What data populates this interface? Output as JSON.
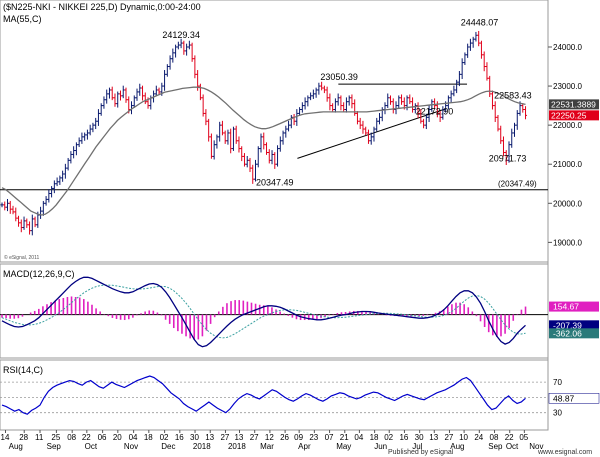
{
  "chart_data": {
    "type": "line",
    "title": "($N225-NKI - NIKKEI 225,D) Dynamic,0:00-24:00",
    "ma_label": "MA(55,C)",
    "watermark": "© eSignal, 2011",
    "footer_left": "Published by eSignal",
    "footer_right": "www.esignal.com",
    "x_tick_labels": [
      {
        "label": "14",
        "pos": 0.06
      },
      {
        "label": "28",
        "pos": 0.38
      },
      {
        "label": "11",
        "pos": 0.65
      },
      {
        "label": "25",
        "pos": 0.93
      },
      {
        "label": "08",
        "pos": 1.2
      },
      {
        "label": "22",
        "pos": 1.45
      },
      {
        "label": "06",
        "pos": 1.72
      },
      {
        "label": "20",
        "pos": 1.98
      },
      {
        "label": "04",
        "pos": 2.25
      },
      {
        "label": "18",
        "pos": 2.51
      },
      {
        "label": "02",
        "pos": 2.78
      },
      {
        "label": "16",
        "pos": 3.04
      },
      {
        "label": "30",
        "pos": 3.3
      },
      {
        "label": "13",
        "pos": 3.56
      },
      {
        "label": "27",
        "pos": 3.82
      },
      {
        "label": "13",
        "pos": 4.06
      },
      {
        "label": "27",
        "pos": 4.32
      },
      {
        "label": "12",
        "pos": 4.58
      },
      {
        "label": "26",
        "pos": 4.84
      },
      {
        "label": "09",
        "pos": 5.08
      },
      {
        "label": "23",
        "pos": 5.34
      },
      {
        "label": "07",
        "pos": 5.6
      },
      {
        "label": "21",
        "pos": 5.86
      },
      {
        "label": "04",
        "pos": 6.11
      },
      {
        "label": "18",
        "pos": 6.37
      },
      {
        "label": "02",
        "pos": 6.62
      },
      {
        "label": "16",
        "pos": 6.88
      },
      {
        "label": "30",
        "pos": 7.14
      },
      {
        "label": "13",
        "pos": 7.39
      },
      {
        "label": "27",
        "pos": 7.65
      },
      {
        "label": "10",
        "pos": 7.9
      },
      {
        "label": "24",
        "pos": 8.16
      },
      {
        "label": "08",
        "pos": 8.42
      },
      {
        "label": "22",
        "pos": 8.68
      },
      {
        "label": "05",
        "pos": 8.93
      }
    ],
    "month_labels": [
      {
        "label": "Aug",
        "pos": 0.25
      },
      {
        "label": "Sep",
        "pos": 0.9
      },
      {
        "label": "Oct",
        "pos": 1.55
      },
      {
        "label": "Nov",
        "pos": 2.22
      },
      {
        "label": "Dec",
        "pos": 2.86
      },
      {
        "label": "2018",
        "pos": 3.4
      },
      {
        "label": "2018",
        "pos": 4.0
      },
      {
        "label": "Mar",
        "pos": 4.55
      },
      {
        "label": "Apr",
        "pos": 5.2
      },
      {
        "label": "May",
        "pos": 5.85
      },
      {
        "label": "Jun",
        "pos": 6.5
      },
      {
        "label": "Jul",
        "pos": 7.15
      },
      {
        "label": "Aug",
        "pos": 7.8
      },
      {
        "label": "Sep",
        "pos": 8.45
      },
      {
        "label": "Oct",
        "pos": 8.75
      },
      {
        "label": "Nov",
        "pos": 9.15
      }
    ],
    "price_pane": {
      "ylim": [
        18600,
        25100
      ],
      "ticks": [
        "19000.0",
        "20000.0",
        "21000.0",
        "22000.0",
        "23000.0",
        "24000.0"
      ],
      "tick_values": [
        19000,
        20000,
        21000,
        22000,
        23000,
        24000
      ],
      "last_values": [
        {
          "label": "22531.3889",
          "value": 22531.3889,
          "color": "#ffffff",
          "bg": "#404040"
        },
        {
          "label": "22250.25",
          "value": 22250.25,
          "color": "#ffffff",
          "bg": "#e0001a"
        }
      ],
      "support_level": {
        "label": "(20347.49)",
        "value": 20347.49
      },
      "annotations": [
        {
          "text": "24129.34",
          "x": 3.05,
          "y": 24129.34
        },
        {
          "text": "23050.39",
          "x": 5.75,
          "y": 23050.39
        },
        {
          "text": "24448.07",
          "x": 8.15,
          "y": 24448.07
        },
        {
          "text": "22583.43",
          "x": 8.72,
          "y": 22583.43
        },
        {
          "text": "22172.90",
          "x": 7.38,
          "y": 22172.9
        },
        {
          "text": "20347.49",
          "x": 4.65,
          "y": 20347.49
        },
        {
          "text": "20971.73",
          "x": 8.63,
          "y": 20971.73
        }
      ],
      "closes": [
        19960,
        19900,
        20000,
        19850,
        19780,
        19620,
        19500,
        19380,
        19550,
        19450,
        19300,
        19600,
        19450,
        19700,
        19800,
        20000,
        20100,
        20250,
        20380,
        20500,
        20550,
        20650,
        20750,
        20900,
        21100,
        21250,
        21350,
        21500,
        21600,
        21700,
        21750,
        21800,
        21900,
        22000,
        22100,
        22300,
        22500,
        22650,
        22800,
        22900,
        22700,
        22550,
        22800,
        22750,
        22900,
        22650,
        22400,
        22500,
        22700,
        22850,
        22950,
        22750,
        22600,
        22500,
        22700,
        22800,
        22900,
        22850,
        23000,
        23300,
        23500,
        23700,
        23850,
        24000,
        24050,
        24100,
        23900,
        24000,
        24050,
        23700,
        23300,
        23000,
        22700,
        22300,
        22100,
        21700,
        21200,
        21500,
        21700,
        22000,
        21800,
        21600,
        21800,
        21400,
        21900,
        21600,
        21400,
        21200,
        21000,
        21100,
        20900,
        20617,
        21000,
        21400,
        21700,
        21500,
        21300,
        21100,
        21250,
        21000,
        21400,
        21600,
        21800,
        21900,
        22000,
        22200,
        22100,
        22300,
        22400,
        22500,
        22600,
        22700,
        22750,
        22800,
        22900,
        23000,
        22950,
        22900,
        22700,
        22500,
        22400,
        22600,
        22700,
        22500,
        22400,
        22600,
        22700,
        22550,
        22300,
        22100,
        22000,
        21900,
        21800,
        21600,
        21700,
        21900,
        22100,
        22200,
        22400,
        22500,
        22700,
        22600,
        22400,
        22500,
        22700,
        22600,
        22500,
        22700,
        22600,
        22400,
        22500,
        22300,
        22100,
        22000,
        22200,
        22400,
        22600,
        22500,
        22300,
        22200,
        22400,
        22500,
        22700,
        22800,
        22900,
        23100,
        23300,
        23600,
        23800,
        24000,
        24100,
        24200,
        24300,
        24100,
        23800,
        23500,
        23200,
        22800,
        22500,
        22200,
        21900,
        21600,
        21300,
        21100,
        21500,
        21800,
        22000,
        22300,
        22500,
        22400,
        22250
      ],
      "ma_values": [
        20400,
        20350,
        20280,
        20200,
        20120,
        20040,
        19960,
        19880,
        19800,
        19760,
        19720,
        19700,
        19720,
        19780,
        19860,
        19960,
        20080,
        20200,
        20320,
        20460,
        20600,
        20740,
        20880,
        21020,
        21160,
        21300,
        21440,
        21560,
        21680,
        21800,
        21920,
        22020,
        22120,
        22200,
        22280,
        22350,
        22420,
        22480,
        22540,
        22600,
        22640,
        22680,
        22720,
        22760,
        22800,
        22840,
        22860,
        22880,
        22900,
        22920,
        22940,
        22950,
        22960,
        22970,
        22970,
        22960,
        22940,
        22900,
        22850,
        22790,
        22720,
        22640,
        22560,
        22470,
        22380,
        22300,
        22220,
        22140,
        22070,
        22010,
        21960,
        21930,
        21910,
        21910,
        21930,
        21960,
        22000,
        22040,
        22080,
        22120,
        22160,
        22200,
        22240,
        22270,
        22290,
        22300,
        22310,
        22320,
        22330,
        22340,
        22340,
        22340,
        22340,
        22340,
        22340,
        22340,
        22340,
        22340,
        22340,
        22340,
        22340,
        22340,
        22350,
        22360,
        22370,
        22380,
        22390,
        22400,
        22410,
        22420,
        22430,
        22440,
        22450,
        22460,
        22470,
        22480,
        22490,
        22500,
        22510,
        22520,
        22530,
        22540,
        22550,
        22560,
        22570,
        22580,
        22590,
        22600,
        22620,
        22650,
        22690,
        22740,
        22790,
        22830,
        22860,
        22870,
        22860,
        22830,
        22790,
        22740,
        22690,
        22640,
        22600,
        22570,
        22550,
        22531
      ]
    },
    "macd_pane": {
      "label": "MACD(12,26,9,C)",
      "ylim": [
        -800,
        900
      ],
      "last_values": [
        {
          "label": "154.67",
          "value": 154.67,
          "color": "#ffffff",
          "bg": "#e020c0"
        },
        {
          "label": "-207.39",
          "value": -207.39,
          "color": "#ffffff",
          "bg": "#000080"
        },
        {
          "label": "-362.06",
          "value": -362.06,
          "color": "#ffffff",
          "bg": "#2a7a7a"
        }
      ],
      "macd_line": [
        -120,
        -160,
        -200,
        -230,
        -240,
        -230,
        -200,
        -160,
        -120,
        -60,
        20,
        100,
        180,
        260,
        340,
        420,
        500,
        580,
        640,
        690,
        720,
        720,
        700,
        660,
        620,
        580,
        540,
        500,
        470,
        440,
        420,
        420,
        440,
        480,
        520,
        560,
        590,
        600,
        580,
        530,
        440,
        330,
        200,
        70,
        -60,
        -200,
        -340,
        -480,
        -580,
        -620,
        -600,
        -540,
        -460,
        -380,
        -300,
        -220,
        -150,
        -90,
        -40,
        0,
        30,
        60,
        90,
        120,
        150,
        170,
        170,
        160,
        140,
        110,
        70,
        30,
        -10,
        -40,
        -60,
        -80,
        -90,
        -100,
        -100,
        -90,
        -70,
        -50,
        -30,
        -10,
        0,
        20,
        40,
        50,
        60,
        60,
        55,
        45,
        30,
        20,
        10,
        0,
        -10,
        -20,
        -30,
        -40,
        -50,
        -60,
        -70,
        -70,
        -60,
        -40,
        -10,
        30,
        90,
        170,
        260,
        350,
        420,
        460,
        460,
        420,
        340,
        220,
        60,
        -120,
        -280,
        -420,
        -520,
        -570,
        -540,
        -460,
        -360,
        -280,
        -207
      ],
      "signal_line": [
        -60,
        -90,
        -120,
        -150,
        -170,
        -190,
        -200,
        -200,
        -190,
        -170,
        -140,
        -100,
        -60,
        -10,
        40,
        100,
        160,
        230,
        300,
        360,
        420,
        470,
        510,
        540,
        560,
        570,
        570,
        565,
        555,
        540,
        525,
        510,
        500,
        495,
        495,
        500,
        510,
        525,
        540,
        545,
        540,
        510,
        460,
        390,
        310,
        220,
        120,
        10,
        -100,
        -200,
        -290,
        -360,
        -410,
        -440,
        -450,
        -440,
        -410,
        -370,
        -320,
        -270,
        -220,
        -170,
        -120,
        -70,
        -30,
        0,
        30,
        60,
        80,
        90,
        95,
        90,
        80,
        65,
        45,
        25,
        5,
        -15,
        -30,
        -45,
        -55,
        -60,
        -60,
        -55,
        -50,
        -40,
        -30,
        -20,
        -10,
        0,
        10,
        18,
        22,
        24,
        24,
        22,
        18,
        12,
        5,
        -5,
        -15,
        -25,
        -35,
        -45,
        -50,
        -50,
        -45,
        -35,
        -15,
        15,
        60,
        120,
        190,
        260,
        320,
        360,
        370,
        350,
        300,
        220,
        120,
        10,
        -100,
        -200,
        -280,
        -340,
        -370,
        -375,
        -362
      ]
    },
    "rsi_pane": {
      "label": "RSI(14,C)",
      "ylim": [
        10,
        95
      ],
      "ticks": [
        "30",
        "50",
        "70"
      ],
      "tick_values": [
        30,
        50,
        70
      ],
      "last_values": [
        {
          "label": "48.87",
          "value": 48.87,
          "color": "#000000",
          "bg": "#ffffff"
        }
      ],
      "values": [
        40,
        38,
        35,
        32,
        34,
        30,
        28,
        33,
        36,
        40,
        50,
        58,
        63,
        66,
        68,
        70,
        72,
        71,
        68,
        66,
        70,
        72,
        68,
        64,
        62,
        66,
        70,
        67,
        65,
        63,
        66,
        69,
        72,
        74,
        76,
        78,
        76,
        72,
        68,
        62,
        56,
        52,
        48,
        42,
        38,
        35,
        32,
        36,
        40,
        44,
        40,
        36,
        33,
        30,
        35,
        42,
        48,
        52,
        55,
        53,
        50,
        48,
        52,
        56,
        60,
        58,
        54,
        50,
        47,
        45,
        48,
        52,
        55,
        53,
        50,
        47,
        45,
        48,
        52,
        54,
        56,
        55,
        52,
        50,
        48,
        50,
        53,
        55,
        57,
        56,
        53,
        50,
        48,
        46,
        49,
        52,
        54,
        52,
        50,
        48,
        47,
        50,
        53,
        56,
        58,
        60,
        63,
        66,
        70,
        74,
        76,
        72,
        64,
        56,
        48,
        40,
        34,
        36,
        42,
        48,
        52,
        46,
        42,
        44,
        48.87
      ]
    }
  }
}
